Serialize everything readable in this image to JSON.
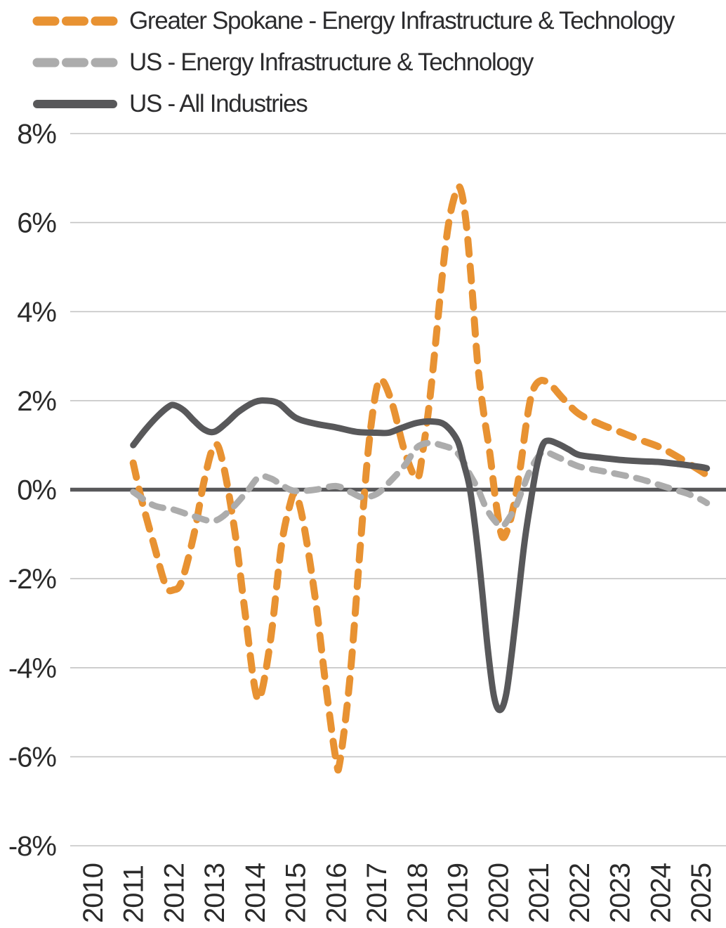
{
  "page": {
    "background": "#ffffff",
    "text_color": "#2b2b2b",
    "axis_line_color": "#58585a",
    "gridline_color": "#c4c4c4"
  },
  "legend": {
    "position": "top-left",
    "items": [
      {
        "swatch": "orange-dashed-line"
      },
      {
        "swatch": "gray-dashed-line"
      },
      {
        "swatch": "dark-solid-line"
      }
    ]
  },
  "chart_data": {
    "type": "line",
    "title": "",
    "xlabel": "",
    "ylabel": "",
    "grid": "horizontal",
    "legend_position": "top-left",
    "xlim": [
      2009.45,
      2025.63
    ],
    "ylim": [
      -8,
      8
    ],
    "x_tick_values": [
      2010,
      2011,
      2012,
      2013,
      2014,
      2015,
      2016,
      2017,
      2018,
      2019,
      2020,
      2021,
      2022,
      2023,
      2024,
      2025
    ],
    "x_tick_labels": [
      "2010",
      "2011",
      "2012",
      "2013",
      "2014",
      "2015",
      "2016",
      "2017",
      "2018",
      "2019",
      "2020",
      "2021",
      "2022",
      "2023",
      "2024",
      "2025"
    ],
    "y_tick_values": [
      8,
      6,
      4,
      2,
      0,
      -2,
      -4,
      -6,
      -8
    ],
    "y_tick_labels": [
      "8%",
      "6%",
      "4%",
      "2%",
      "0%",
      "-2%",
      "-4%",
      "-6%",
      "-8%"
    ],
    "series": [
      {
        "name": "Greater Spokane - Energy Infrastructure & Technology",
        "color": "#E89232",
        "style": "dashed",
        "line_width": 10,
        "dash": [
          21,
          17
        ],
        "points": [
          [
            2011.0,
            0.6
          ],
          [
            2011.2,
            -0.2
          ],
          [
            2011.5,
            -1.2
          ],
          [
            2011.8,
            -2.15
          ],
          [
            2012.0,
            -2.25
          ],
          [
            2012.2,
            -2.05
          ],
          [
            2012.5,
            -1.0
          ],
          [
            2012.75,
            0.2
          ],
          [
            2013.0,
            1.0
          ],
          [
            2013.2,
            0.65
          ],
          [
            2013.5,
            -0.9
          ],
          [
            2013.75,
            -2.7
          ],
          [
            2014.0,
            -4.45
          ],
          [
            2014.15,
            -4.6
          ],
          [
            2014.4,
            -3.3
          ],
          [
            2014.65,
            -1.3
          ],
          [
            2014.85,
            -0.4
          ],
          [
            2015.0,
            -0.1
          ],
          [
            2015.2,
            -0.75
          ],
          [
            2015.5,
            -2.5
          ],
          [
            2015.75,
            -4.4
          ],
          [
            2016.0,
            -6.05
          ],
          [
            2016.1,
            -6.1
          ],
          [
            2016.35,
            -4.2
          ],
          [
            2016.6,
            -1.3
          ],
          [
            2016.8,
            0.9
          ],
          [
            2017.0,
            2.25
          ],
          [
            2017.15,
            2.45
          ],
          [
            2017.4,
            1.9
          ],
          [
            2017.7,
            0.85
          ],
          [
            2018.0,
            0.25
          ],
          [
            2018.15,
            0.9
          ],
          [
            2018.3,
            1.9
          ],
          [
            2018.45,
            3.2
          ],
          [
            2018.6,
            4.6
          ],
          [
            2018.75,
            5.8
          ],
          [
            2018.9,
            6.5
          ],
          [
            2019.05,
            6.8
          ],
          [
            2019.2,
            6.1
          ],
          [
            2019.35,
            4.6
          ],
          [
            2019.5,
            2.8
          ],
          [
            2019.65,
            1.7
          ],
          [
            2019.8,
            0.8
          ],
          [
            2019.95,
            -0.3
          ],
          [
            2020.1,
            -1.05
          ],
          [
            2020.25,
            -0.85
          ],
          [
            2020.4,
            -0.3
          ],
          [
            2020.55,
            0.5
          ],
          [
            2020.7,
            1.5
          ],
          [
            2020.85,
            2.2
          ],
          [
            2021.05,
            2.45
          ],
          [
            2021.3,
            2.35
          ],
          [
            2021.6,
            2.05
          ],
          [
            2022.0,
            1.7
          ],
          [
            2022.5,
            1.48
          ],
          [
            2023.0,
            1.3
          ],
          [
            2023.5,
            1.12
          ],
          [
            2024.0,
            0.95
          ],
          [
            2024.5,
            0.7
          ],
          [
            2025.0,
            0.42
          ],
          [
            2025.15,
            0.32
          ]
        ]
      },
      {
        "name": "US - Energy Infrastructure & Technology",
        "color": "#ACACAC",
        "style": "dashed",
        "line_width": 9,
        "dash": [
          17,
          15
        ],
        "points": [
          [
            2011.0,
            -0.05
          ],
          [
            2011.5,
            -0.35
          ],
          [
            2012.0,
            -0.45
          ],
          [
            2012.5,
            -0.6
          ],
          [
            2013.0,
            -0.7
          ],
          [
            2013.4,
            -0.45
          ],
          [
            2013.8,
            -0.05
          ],
          [
            2014.1,
            0.28
          ],
          [
            2014.4,
            0.25
          ],
          [
            2014.7,
            0.08
          ],
          [
            2015.0,
            -0.03
          ],
          [
            2015.5,
            0.0
          ],
          [
            2016.0,
            0.08
          ],
          [
            2016.35,
            -0.05
          ],
          [
            2016.65,
            -0.17
          ],
          [
            2017.0,
            -0.1
          ],
          [
            2017.3,
            0.15
          ],
          [
            2017.7,
            0.55
          ],
          [
            2018.0,
            0.95
          ],
          [
            2018.3,
            1.05
          ],
          [
            2018.6,
            1.0
          ],
          [
            2018.9,
            0.9
          ],
          [
            2019.1,
            0.7
          ],
          [
            2019.3,
            0.35
          ],
          [
            2019.5,
            0.02
          ],
          [
            2019.7,
            -0.4
          ],
          [
            2019.9,
            -0.68
          ],
          [
            2020.1,
            -0.82
          ],
          [
            2020.3,
            -0.6
          ],
          [
            2020.45,
            -0.35
          ],
          [
            2020.6,
            0.0
          ],
          [
            2020.8,
            0.45
          ],
          [
            2021.0,
            0.75
          ],
          [
            2021.15,
            0.85
          ],
          [
            2021.5,
            0.72
          ],
          [
            2022.0,
            0.52
          ],
          [
            2022.5,
            0.43
          ],
          [
            2023.0,
            0.34
          ],
          [
            2023.5,
            0.24
          ],
          [
            2024.0,
            0.1
          ],
          [
            2024.35,
            0.0
          ],
          [
            2024.7,
            -0.1
          ],
          [
            2025.0,
            -0.22
          ],
          [
            2025.15,
            -0.3
          ]
        ]
      },
      {
        "name": "US - All Industries",
        "color": "#58585A",
        "style": "solid",
        "line_width": 9,
        "dash": null,
        "points": [
          [
            2011.0,
            1.0
          ],
          [
            2011.3,
            1.35
          ],
          [
            2011.6,
            1.65
          ],
          [
            2011.85,
            1.85
          ],
          [
            2012.0,
            1.9
          ],
          [
            2012.25,
            1.78
          ],
          [
            2012.5,
            1.55
          ],
          [
            2012.75,
            1.35
          ],
          [
            2013.0,
            1.3
          ],
          [
            2013.3,
            1.5
          ],
          [
            2013.6,
            1.75
          ],
          [
            2014.0,
            1.97
          ],
          [
            2014.3,
            2.0
          ],
          [
            2014.6,
            1.93
          ],
          [
            2015.0,
            1.62
          ],
          [
            2015.5,
            1.48
          ],
          [
            2016.0,
            1.4
          ],
          [
            2016.5,
            1.3
          ],
          [
            2017.0,
            1.28
          ],
          [
            2017.3,
            1.28
          ],
          [
            2017.6,
            1.38
          ],
          [
            2018.0,
            1.5
          ],
          [
            2018.4,
            1.53
          ],
          [
            2018.7,
            1.45
          ],
          [
            2019.0,
            1.1
          ],
          [
            2019.15,
            0.6
          ],
          [
            2019.3,
            0.05
          ],
          [
            2019.45,
            -0.95
          ],
          [
            2019.6,
            -2.2
          ],
          [
            2019.75,
            -3.6
          ],
          [
            2019.9,
            -4.65
          ],
          [
            2020.05,
            -4.95
          ],
          [
            2020.2,
            -4.6
          ],
          [
            2020.35,
            -3.6
          ],
          [
            2020.5,
            -2.4
          ],
          [
            2020.65,
            -1.2
          ],
          [
            2020.8,
            -0.3
          ],
          [
            2020.95,
            0.5
          ],
          [
            2021.1,
            1.0
          ],
          [
            2021.25,
            1.1
          ],
          [
            2021.5,
            1.02
          ],
          [
            2021.75,
            0.9
          ],
          [
            2022.0,
            0.78
          ],
          [
            2022.5,
            0.72
          ],
          [
            2023.0,
            0.67
          ],
          [
            2023.5,
            0.64
          ],
          [
            2024.0,
            0.62
          ],
          [
            2024.5,
            0.57
          ],
          [
            2025.0,
            0.51
          ],
          [
            2025.15,
            0.48
          ]
        ]
      }
    ]
  }
}
